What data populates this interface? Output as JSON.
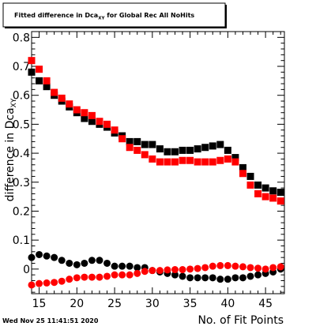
{
  "chart_data": {
    "type": "scatter",
    "title_main": "Fitted difference in Dca",
    "title_sub": "XY",
    "title_rest": " for Global Rec All NoHits",
    "xlabel": "No. of Fit Points",
    "ylabel_main": "difference in Dca",
    "ylabel_sub": "XY",
    "timestamp": "Wed Nov 25 11:41:51 2020",
    "xlim": [
      14,
      47.5
    ],
    "ylim": [
      -0.085,
      0.82
    ],
    "xticks": [
      15,
      20,
      25,
      30,
      35,
      40,
      45
    ],
    "yticks": [
      0,
      0.1,
      0.2,
      0.3,
      0.4,
      0.5,
      0.6,
      0.7,
      0.8
    ],
    "ytick_labels": [
      "0",
      "0.1",
      "0.2",
      "0.3",
      "0.4",
      "0.5",
      "0.6",
      "0.7",
      "0.8"
    ],
    "colors": {
      "black": "#000000",
      "red": "#ff0000"
    },
    "series": [
      {
        "marker": "square",
        "color": "#000000",
        "x": [
          14,
          15,
          16,
          17,
          18,
          19,
          20,
          21,
          22,
          23,
          24,
          25,
          26,
          27,
          28,
          29,
          30,
          31,
          32,
          33,
          34,
          35,
          36,
          37,
          38,
          39,
          40,
          41,
          42,
          43,
          44,
          45,
          46,
          47
        ],
        "y": [
          0.68,
          0.65,
          0.63,
          0.6,
          0.58,
          0.56,
          0.54,
          0.52,
          0.51,
          0.5,
          0.49,
          0.47,
          0.46,
          0.44,
          0.44,
          0.43,
          0.43,
          0.415,
          0.405,
          0.405,
          0.41,
          0.41,
          0.415,
          0.42,
          0.425,
          0.43,
          0.41,
          0.385,
          0.35,
          0.32,
          0.29,
          0.28,
          0.27,
          0.265
        ]
      },
      {
        "marker": "square",
        "color": "#ff0000",
        "x": [
          14,
          15,
          16,
          17,
          18,
          19,
          20,
          21,
          22,
          23,
          24,
          25,
          26,
          27,
          28,
          29,
          30,
          31,
          32,
          33,
          34,
          35,
          36,
          37,
          38,
          39,
          40,
          41,
          42,
          43,
          44,
          45,
          46,
          47
        ],
        "y": [
          0.72,
          0.69,
          0.65,
          0.61,
          0.59,
          0.57,
          0.55,
          0.54,
          0.53,
          0.51,
          0.5,
          0.48,
          0.45,
          0.42,
          0.41,
          0.395,
          0.38,
          0.37,
          0.37,
          0.37,
          0.375,
          0.375,
          0.37,
          0.37,
          0.37,
          0.375,
          0.38,
          0.37,
          0.33,
          0.29,
          0.26,
          0.25,
          0.245,
          0.235
        ]
      },
      {
        "marker": "circle",
        "color": "#000000",
        "x": [
          14,
          15,
          16,
          17,
          18,
          19,
          20,
          21,
          22,
          23,
          24,
          25,
          26,
          27,
          28,
          29,
          30,
          31,
          32,
          33,
          34,
          35,
          36,
          37,
          38,
          39,
          40,
          41,
          42,
          43,
          44,
          45,
          46,
          47
        ],
        "y": [
          0.04,
          0.05,
          0.045,
          0.04,
          0.03,
          0.02,
          0.015,
          0.02,
          0.03,
          0.03,
          0.02,
          0.01,
          0.01,
          0.01,
          0.005,
          0.005,
          -0.005,
          -0.01,
          -0.015,
          -0.02,
          -0.025,
          -0.03,
          -0.03,
          -0.03,
          -0.03,
          -0.035,
          -0.035,
          -0.03,
          -0.03,
          -0.025,
          -0.02,
          -0.015,
          -0.01,
          0.0
        ]
      },
      {
        "marker": "circle",
        "color": "#ff0000",
        "x": [
          14,
          15,
          16,
          17,
          18,
          19,
          20,
          21,
          22,
          23,
          24,
          25,
          26,
          27,
          28,
          29,
          30,
          31,
          32,
          33,
          34,
          35,
          36,
          37,
          38,
          39,
          40,
          41,
          42,
          43,
          44,
          45,
          46,
          47
        ],
        "y": [
          -0.055,
          -0.05,
          -0.048,
          -0.046,
          -0.042,
          -0.035,
          -0.03,
          -0.028,
          -0.028,
          -0.028,
          -0.025,
          -0.02,
          -0.02,
          -0.02,
          -0.015,
          -0.008,
          -0.005,
          -0.005,
          -0.003,
          -0.002,
          -0.002,
          0.0,
          0.002,
          0.005,
          0.01,
          0.012,
          0.012,
          0.01,
          0.008,
          0.005,
          0.003,
          0.0,
          0.005,
          0.008
        ]
      }
    ]
  }
}
